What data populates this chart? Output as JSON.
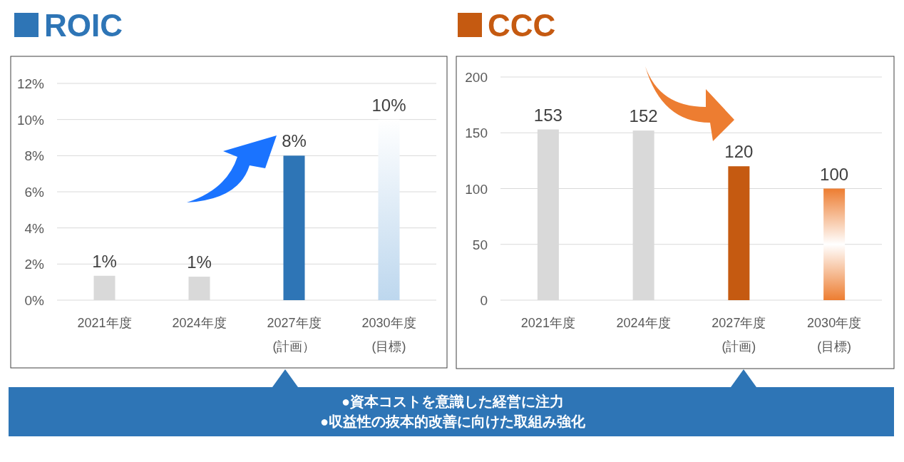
{
  "chart_data": [
    {
      "type": "bar",
      "title": "ROIC",
      "categories": [
        "2021年度",
        "2024年度",
        "2027年度\n(計画）",
        "2030年度\n(目標)"
      ],
      "values": [
        1.35,
        1.3,
        8,
        10
      ],
      "value_labels": [
        "1%",
        "1%",
        "8%",
        "10%"
      ],
      "colors": [
        "#d9d9d9",
        "#d9d9d9",
        "#2e75b6",
        "#bdd7ee"
      ],
      "ylim": [
        0,
        12
      ],
      "yticks": [
        {
          "value": 0,
          "label": "0%"
        },
        {
          "value": 2,
          "label": "2%"
        },
        {
          "value": 4,
          "label": "4%"
        },
        {
          "value": 6,
          "label": "6%"
        },
        {
          "value": 8,
          "label": "8%"
        },
        {
          "value": 10,
          "label": "10%"
        },
        {
          "value": 12,
          "label": "12%"
        }
      ],
      "grid": "y",
      "annotations": [
        "●資本コストを意識した経営に注力",
        "●収益性の抜本的改善に向けた取組み強化"
      ]
    },
    {
      "type": "bar",
      "title": "CCC",
      "categories": [
        "2021年度",
        "2024年度",
        "2027年度\n(計画)",
        "2030年度\n(目標)"
      ],
      "values": [
        153,
        152,
        120,
        100
      ],
      "data_labels": true,
      "colors": [
        "#d9d9d9",
        "#d9d9d9",
        "#c55a11",
        "#ed7d31"
      ],
      "ylim": [
        0,
        200
      ],
      "yticks": [
        0,
        50,
        100,
        150,
        200
      ],
      "grid": "y"
    }
  ]
}
